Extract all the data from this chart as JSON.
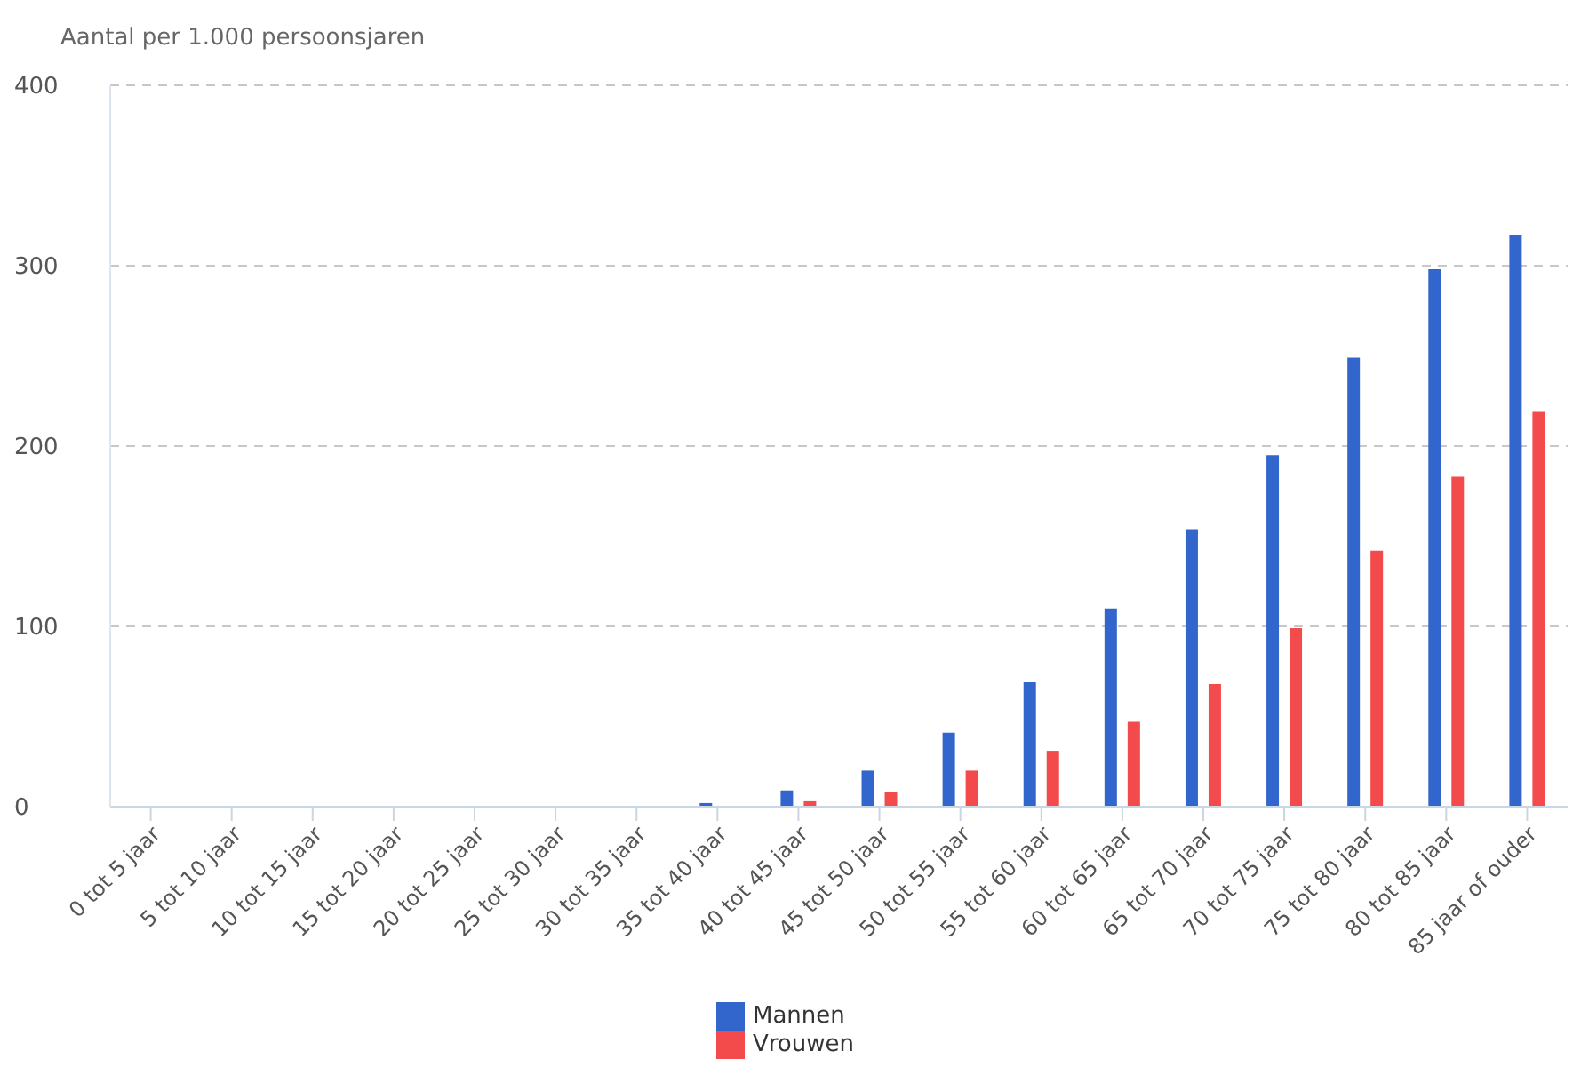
{
  "chart_data": {
    "type": "bar",
    "ylabel": "Aantal per 1.000 persoonsjaren",
    "categories": [
      "0 tot 5 jaar",
      "5 tot 10 jaar",
      "10 tot 15 jaar",
      "15 tot 20 jaar",
      "20 tot 25 jaar",
      "25 tot 30 jaar",
      "30 tot 35 jaar",
      "35 tot 40 jaar",
      "40 tot 45 jaar",
      "45 tot 50 jaar",
      "50 tot 55 jaar",
      "55 tot 60 jaar",
      "60 tot 65 jaar",
      "65 tot 70 jaar",
      "70 tot 75 jaar",
      "75 tot 80 jaar",
      "80 tot 85 jaar",
      "85 jaar of ouder"
    ],
    "series": [
      {
        "name": "Mannen",
        "color": "#3366cc",
        "values": [
          0,
          0,
          0,
          0,
          0,
          0,
          0,
          2,
          9,
          20,
          41,
          69,
          110,
          154,
          195,
          249,
          298,
          317
        ]
      },
      {
        "name": "Vrouwen",
        "color": "#f34b4b",
        "values": [
          0,
          0,
          0,
          0,
          0,
          0,
          0,
          0,
          3,
          8,
          20,
          31,
          47,
          68,
          99,
          142,
          183,
          219
        ]
      }
    ],
    "ylim": [
      0,
      400
    ],
    "yticks": [
      0,
      100,
      200,
      300,
      400
    ],
    "grid": "y",
    "legend": "bottom"
  }
}
